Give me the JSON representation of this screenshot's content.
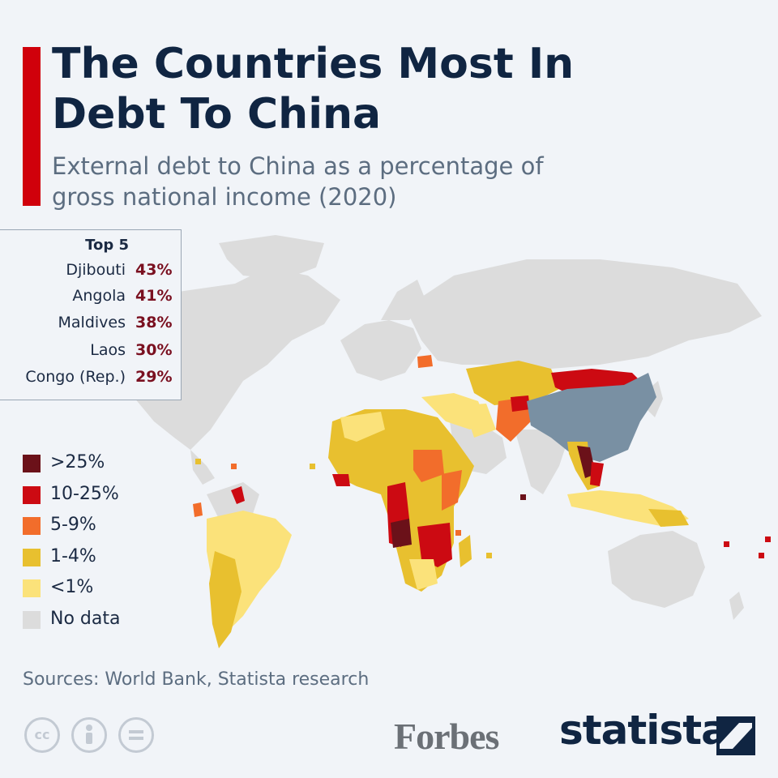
{
  "title": "The Countries Most In Debt To China",
  "subtitle": "External debt to China as a percentage of gross national income (2020)",
  "top5": {
    "heading": "Top 5",
    "items": [
      {
        "country": "Djibouti",
        "value": "43%"
      },
      {
        "country": "Angola",
        "value": "41%"
      },
      {
        "country": "Maldives",
        "value": "38%"
      },
      {
        "country": "Laos",
        "value": "30%"
      },
      {
        "country": "Congo (Rep.)",
        "value": "29%"
      }
    ]
  },
  "legend": [
    {
      "label": ">25%",
      "color": "#6b1119"
    },
    {
      "label": "10-25%",
      "color": "#cc0a12"
    },
    {
      "label": "5-9%",
      "color": "#f26d2b"
    },
    {
      "label": "1-4%",
      "color": "#e8c02f"
    },
    {
      "label": "<1%",
      "color": "#fbe27a"
    },
    {
      "label": "No data",
      "color": "#dcdcdc"
    }
  ],
  "map": {
    "china_color": "#7990a3",
    "land_color": "#dcdcdc"
  },
  "sources": "Sources: World Bank, Statista research",
  "brands": {
    "partner": "Forbes",
    "publisher": "statista",
    "license_icons": [
      "cc-icon",
      "attribution-icon",
      "no-derivatives-icon"
    ]
  },
  "colors": {
    "accent": "#d0000b",
    "title": "#102542",
    "subtitle": "#5c6d80",
    "value": "#7a1020",
    "background": "#f1f4f8"
  }
}
